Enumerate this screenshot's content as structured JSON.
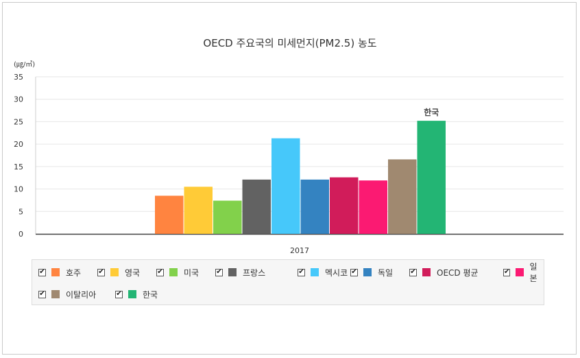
{
  "chart_data": {
    "type": "bar",
    "title": "OECD 주요국의 미세먼지(PM2.5) 농도",
    "unit_label": "(㎍/㎥)",
    "categories": [
      "2017"
    ],
    "ylim": [
      0,
      35
    ],
    "yticks": [
      0,
      5,
      10,
      15,
      20,
      25,
      30,
      35
    ],
    "grid": true,
    "legend_position": "bottom",
    "series": [
      {
        "name": "호주",
        "values": [
          8.5
        ],
        "color": "#ff8440"
      },
      {
        "name": "영국",
        "values": [
          10.5
        ],
        "color": "#ffcb37"
      },
      {
        "name": "미국",
        "values": [
          7.4
        ],
        "color": "#82d14b"
      },
      {
        "name": "프랑스",
        "values": [
          12.1
        ],
        "color": "#626262"
      },
      {
        "name": "멕시코",
        "values": [
          21.3
        ],
        "color": "#46c8fa"
      },
      {
        "name": "독일",
        "values": [
          12.1
        ],
        "color": "#3483c1"
      },
      {
        "name": "OECD 평균",
        "values": [
          12.6
        ],
        "color": "#d11c5a"
      },
      {
        "name": "일본",
        "values": [
          11.9
        ],
        "color": "#fb1a72"
      },
      {
        "name": "이탈리아",
        "values": [
          16.6
        ],
        "color": "#a08970"
      },
      {
        "name": "한국",
        "values": [
          25.2
        ],
        "color": "#23b574"
      }
    ],
    "annotations": [
      {
        "series": "한국",
        "text": "한국"
      }
    ]
  }
}
